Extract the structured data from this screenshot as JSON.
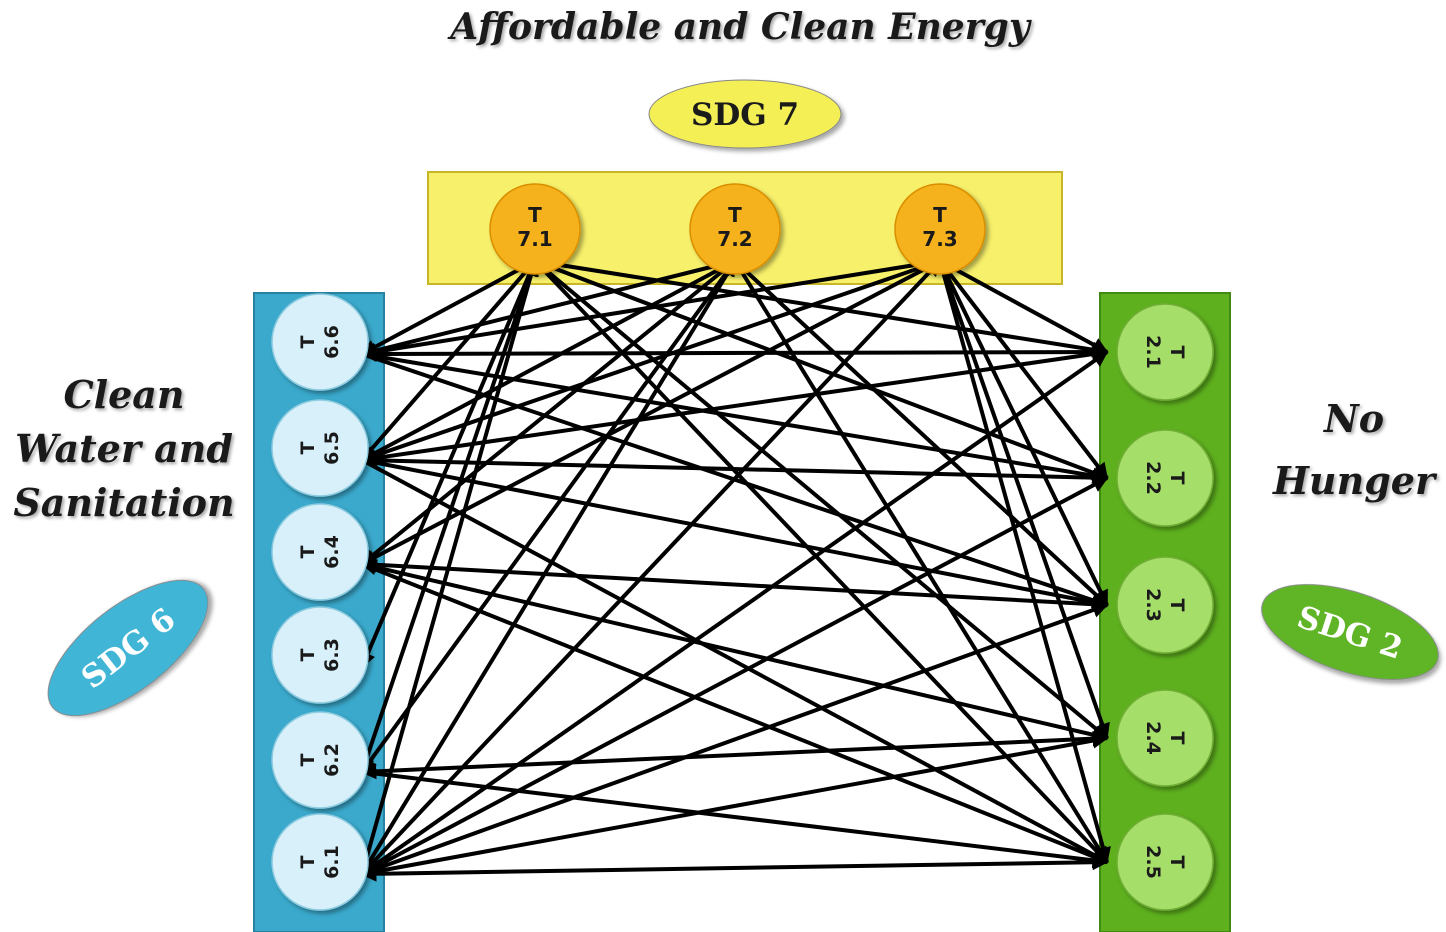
{
  "labels": {
    "top": "Affordable and Clean Energy",
    "left": [
      "Clean",
      "Water and",
      "Sanitation"
    ],
    "right": [
      "No",
      "Hunger"
    ]
  },
  "sdgs": [
    {
      "id": "sdg7",
      "label": "SDG 7",
      "color": "#f3ef55"
    },
    {
      "id": "sdg6",
      "label": "SDG 6",
      "color": "#3fb5d6"
    },
    {
      "id": "sdg2",
      "label": "SDG 2",
      "color": "#5fb525"
    }
  ],
  "colors": {
    "sdg7_panel": "#f7f06a",
    "sdg7_node": "#f6b21a",
    "sdg6_panel": "#3aa9cc",
    "sdg6_node": "#d8f0fa",
    "sdg2_panel": "#5eb01e",
    "sdg2_node": "#a6de6b",
    "arrow": "#000000"
  },
  "targets": {
    "sdg7": [
      {
        "id": "7.1",
        "prefix": "T",
        "label": "7.1"
      },
      {
        "id": "7.2",
        "prefix": "T",
        "label": "7.2"
      },
      {
        "id": "7.3",
        "prefix": "T",
        "label": "7.3"
      }
    ],
    "sdg6": [
      {
        "id": "6.6",
        "prefix": "T",
        "label": "6.6"
      },
      {
        "id": "6.5",
        "prefix": "T",
        "label": "6.5"
      },
      {
        "id": "6.4",
        "prefix": "T",
        "label": "6.4"
      },
      {
        "id": "6.3",
        "prefix": "T",
        "label": "6.3"
      },
      {
        "id": "6.2",
        "prefix": "T",
        "label": "6.2"
      },
      {
        "id": "6.1",
        "prefix": "T",
        "label": "6.1"
      }
    ],
    "sdg2": [
      {
        "id": "2.1",
        "prefix": "T",
        "label": "2.1"
      },
      {
        "id": "2.2",
        "prefix": "T",
        "label": "2.2"
      },
      {
        "id": "2.3",
        "prefix": "T",
        "label": "2.3"
      },
      {
        "id": "2.4",
        "prefix": "T",
        "label": "2.4"
      },
      {
        "id": "2.5",
        "prefix": "T",
        "label": "2.5"
      }
    ]
  },
  "links": [
    [
      "7.1",
      "6.6",
      true
    ],
    [
      "7.1",
      "6.5",
      true
    ],
    [
      "7.1",
      "6.3",
      true
    ],
    [
      "7.1",
      "6.2",
      true
    ],
    [
      "7.1",
      "6.1",
      true
    ],
    [
      "7.1",
      "2.1",
      false
    ],
    [
      "7.1",
      "2.2",
      false
    ],
    [
      "7.1",
      "2.4",
      false
    ],
    [
      "7.1",
      "2.5",
      false
    ],
    [
      "7.2",
      "6.6",
      false
    ],
    [
      "7.2",
      "6.5",
      true
    ],
    [
      "7.2",
      "6.4",
      true
    ],
    [
      "7.2",
      "6.2",
      true
    ],
    [
      "7.2",
      "6.1",
      true
    ],
    [
      "7.2",
      "2.3",
      false
    ],
    [
      "7.2",
      "2.5",
      false
    ],
    [
      "7.3",
      "6.6",
      true
    ],
    [
      "7.3",
      "6.5",
      true
    ],
    [
      "7.3",
      "6.4",
      true
    ],
    [
      "7.3",
      "6.1",
      true
    ],
    [
      "7.3",
      "2.1",
      true
    ],
    [
      "7.3",
      "2.2",
      false
    ],
    [
      "7.3",
      "2.3",
      false
    ],
    [
      "7.3",
      "2.4",
      false
    ],
    [
      "7.3",
      "2.5",
      false
    ],
    [
      "6.6",
      "2.1",
      true
    ],
    [
      "6.6",
      "2.2",
      false
    ],
    [
      "6.6",
      "2.3",
      false
    ],
    [
      "6.5",
      "2.1",
      true
    ],
    [
      "6.5",
      "2.2",
      false
    ],
    [
      "6.5",
      "2.3",
      false
    ],
    [
      "6.5",
      "2.5",
      false
    ],
    [
      "6.4",
      "2.3",
      true
    ],
    [
      "6.4",
      "2.4",
      true
    ],
    [
      "6.4",
      "2.5",
      false
    ],
    [
      "6.2",
      "2.4",
      true
    ],
    [
      "6.2",
      "2.5",
      false
    ],
    [
      "6.1",
      "2.1",
      false
    ],
    [
      "6.1",
      "2.2",
      false
    ],
    [
      "6.1",
      "2.3",
      false
    ],
    [
      "6.1",
      "2.4",
      false
    ],
    [
      "6.1",
      "2.5",
      true
    ]
  ]
}
